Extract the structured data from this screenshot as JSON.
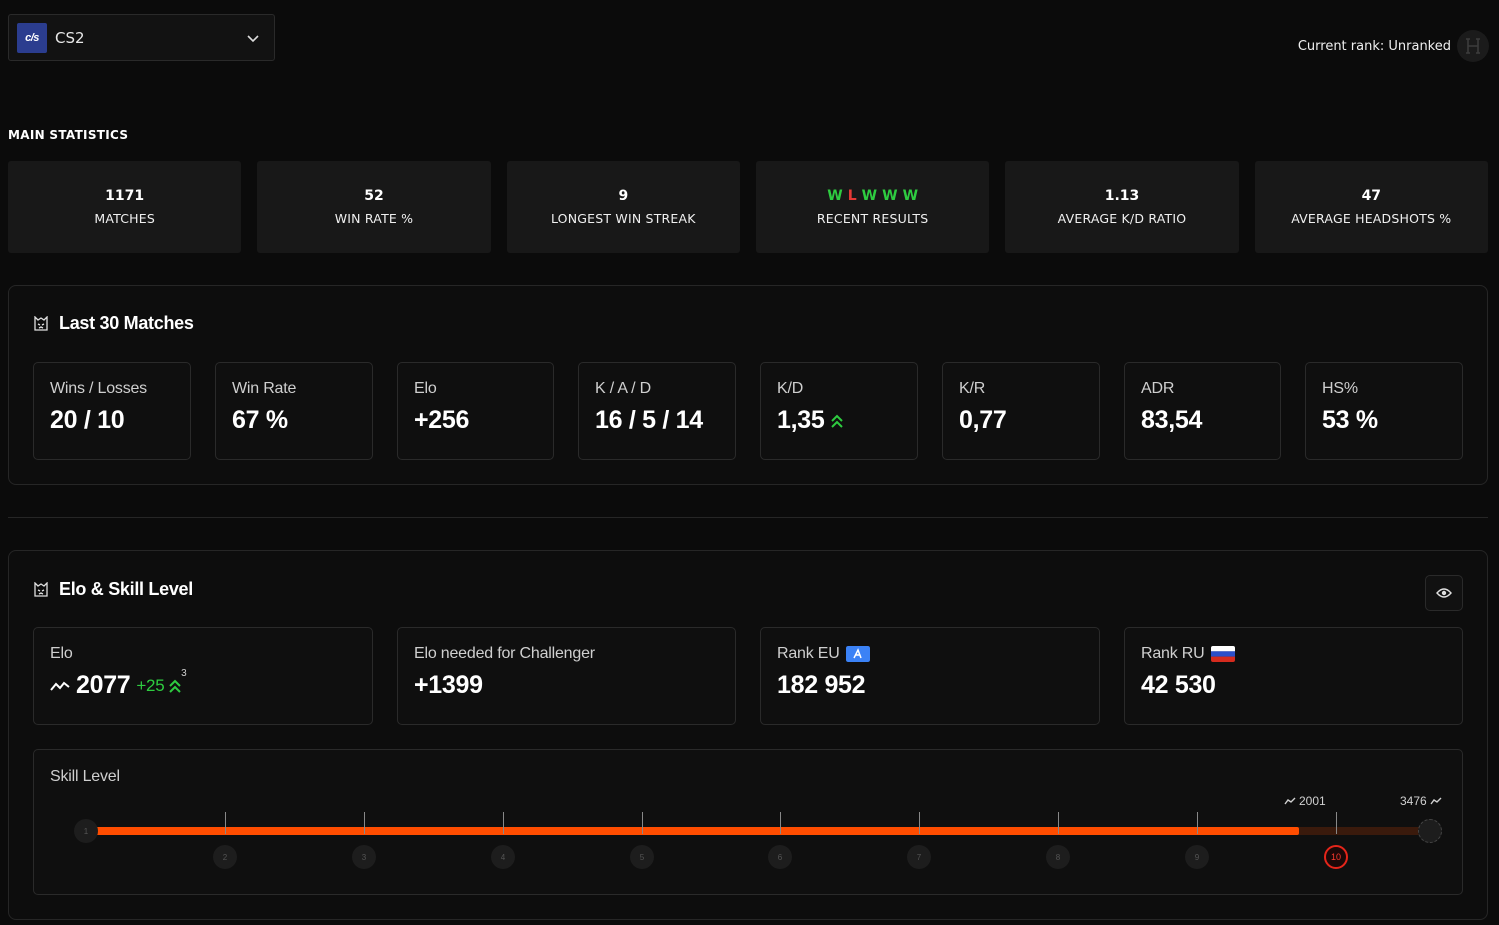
{
  "game_selector": {
    "logo_text": "c/s",
    "name": "CS2",
    "icon": "chevron-down-icon"
  },
  "current_rank": {
    "label": "Current rank: Unranked",
    "icon": "unranked-icon"
  },
  "main_statistics": {
    "title": "MAIN STATISTICS",
    "items": [
      {
        "value": "1171",
        "label": "MATCHES"
      },
      {
        "value": "52",
        "label": "WIN RATE %"
      },
      {
        "value": "9",
        "label": "LONGEST WIN STREAK"
      },
      {
        "value": "",
        "label": "RECENT RESULTS"
      },
      {
        "value": "1.13",
        "label": "AVERAGE K/D RATIO"
      },
      {
        "value": "47",
        "label": "AVERAGE HEADSHOTS %"
      }
    ],
    "recent_results": [
      "W",
      "L",
      "W",
      "W",
      "W"
    ],
    "colors": {
      "win": "#2ecc40",
      "loss": "#e53935"
    }
  },
  "last30": {
    "title": "Last 30 Matches",
    "cards": [
      {
        "label": "Wins / Losses",
        "value": "20 / 10"
      },
      {
        "label": "Win Rate",
        "value": "67 %"
      },
      {
        "label": "Elo",
        "value": "+256"
      },
      {
        "label": "K / A / D",
        "value": "16 / 5 / 14"
      },
      {
        "label": "K/D",
        "value": "1,35"
      },
      {
        "label": "K/R",
        "value": "0,77"
      },
      {
        "label": "ADR",
        "value": "83,54"
      },
      {
        "label": "HS%",
        "value": "53 %"
      }
    ]
  },
  "elo_skill": {
    "title": "Elo & Skill Level",
    "elo": {
      "label": "Elo",
      "value": "2077",
      "change": "+25",
      "streak": "3"
    },
    "challenger": {
      "label": "Elo needed for Challenger",
      "value": "+1399"
    },
    "rank_eu": {
      "label": "Rank EU",
      "value": "182 952"
    },
    "rank_ru": {
      "label": "Rank RU",
      "value": "42 530"
    },
    "skill": {
      "label": "Skill Level",
      "current_level": 10,
      "levels": [
        "1",
        "2",
        "3",
        "4",
        "5",
        "6",
        "7",
        "8",
        "9",
        "10"
      ],
      "marker_2001": "2001",
      "marker_3476": "3476",
      "progress_fraction": 0.9,
      "bar_color": "#ff4d00"
    }
  }
}
